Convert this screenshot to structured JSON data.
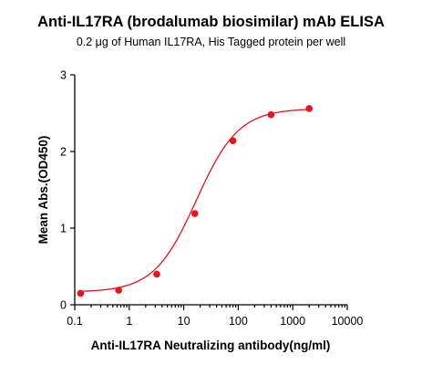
{
  "chart_data": {
    "type": "scatter",
    "title": "Anti-IL17RA (brodalumab biosimilar) mAb ELISA",
    "subtitle": "0.2 μg of Human IL17RA, His Tagged protein per well",
    "xlabel": "Anti-IL17RA Neutralizing antibody(ng/ml)",
    "ylabel": "Mean Abs.(OD450)",
    "xscale": "log",
    "xlim": [
      0.1,
      10000
    ],
    "ylim": [
      0,
      3
    ],
    "xticks": [
      0.1,
      1,
      10,
      100,
      1000,
      10000
    ],
    "xtick_labels": [
      "0.1",
      "1",
      "10",
      "100",
      "1000",
      "10000"
    ],
    "yticks": [
      0,
      1,
      2,
      3
    ],
    "ytick_labels": [
      "0",
      "1",
      "2",
      "3"
    ],
    "grid": false,
    "color": "#e8141c",
    "fit": "sigmoidal dose-response curve",
    "series": [
      {
        "x": [
          0.128,
          0.64,
          3.2,
          16,
          80,
          400,
          2000
        ],
        "y": [
          0.15,
          0.19,
          0.4,
          1.19,
          2.14,
          2.48,
          2.56
        ]
      }
    ]
  }
}
